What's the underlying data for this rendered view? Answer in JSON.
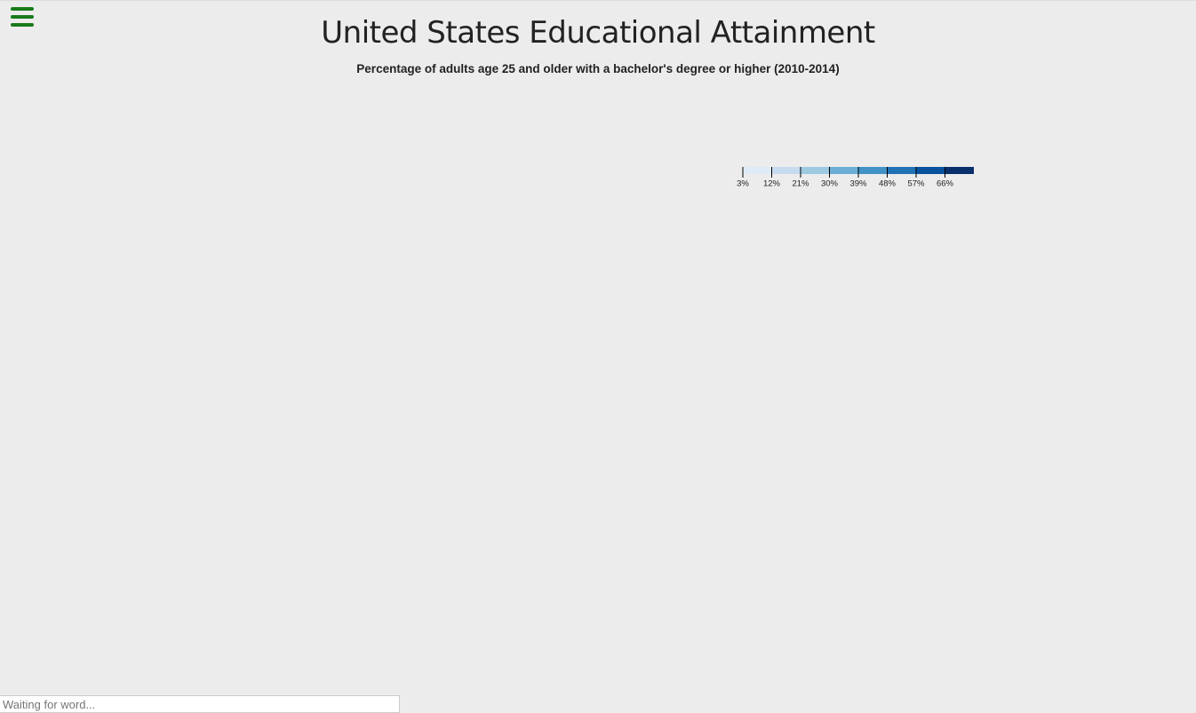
{
  "header": {
    "title": "United States Educational Attainment",
    "subtitle": "Percentage of adults age 25 and older with a bachelor's degree or higher (2010-2014)"
  },
  "legend": {
    "labels": [
      "3%",
      "12%",
      "21%",
      "30%",
      "39%",
      "48%",
      "57%",
      "66%"
    ],
    "colors": [
      "#deebf7",
      "#c6dbef",
      "#9ecae1",
      "#6baed6",
      "#4292c6",
      "#2171b5",
      "#08519c",
      "#08306b"
    ]
  },
  "footer": {
    "input_placeholder": "Waiting for word..."
  }
}
